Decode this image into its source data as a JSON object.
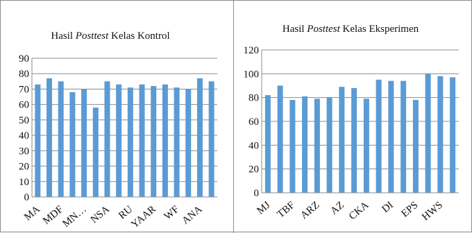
{
  "colors": {
    "bar": "#5b9bd5",
    "grid": "#8c8c8c",
    "axis": "#8c8c8c",
    "frame": "#8a8a8a"
  },
  "chart_data": [
    {
      "type": "bar",
      "title": "Hasil Posttest Kelas Kontrol",
      "title_parts": {
        "prefix": "Hasil ",
        "italic": "Posttest",
        "suffix": " Kelas Kontrol"
      },
      "ylim": [
        0,
        90
      ],
      "yticks": [
        0,
        10,
        20,
        30,
        40,
        50,
        60,
        70,
        80,
        90
      ],
      "grid": true,
      "legend": "none",
      "xlabel": "",
      "ylabel": "",
      "categories": [
        "MA",
        "",
        "MDF",
        "",
        "MN…",
        "",
        "NSA",
        "",
        "RU",
        "",
        "YAAR",
        "",
        "WF",
        "",
        "ANA",
        ""
      ],
      "values": [
        73,
        77,
        75,
        68,
        70,
        58,
        75,
        73,
        71,
        73,
        72,
        73,
        71,
        70,
        77,
        75
      ]
    },
    {
      "type": "bar",
      "title": "Hasil Posttest Kelas Eksperimen",
      "title_parts": {
        "prefix": "Hasil ",
        "italic": "Posttest",
        "suffix": " Kelas Eksperimen"
      },
      "ylim": [
        0,
        120
      ],
      "yticks": [
        0,
        20,
        40,
        60,
        80,
        100,
        120
      ],
      "grid": true,
      "legend": "none",
      "xlabel": "",
      "ylabel": "",
      "categories": [
        "MJ",
        "",
        "TBF",
        "",
        "ARZ",
        "",
        "AZ",
        "",
        "CKA",
        "",
        "DI",
        "",
        "EPS",
        "",
        "HWS",
        ""
      ],
      "values": [
        82,
        90,
        78,
        81,
        79,
        80,
        89,
        88,
        79,
        95,
        94,
        94,
        78,
        100,
        98,
        97
      ]
    }
  ]
}
